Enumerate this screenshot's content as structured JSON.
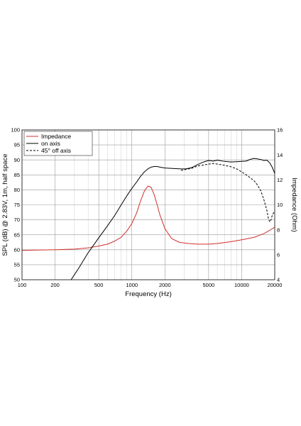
{
  "chart_data": {
    "type": "line",
    "xlabel": "Frequency (Hz)",
    "ylabel": "SPL (dB) @ 2.83V, 1m, half space",
    "y2label": "Impedance (Ohm)",
    "xscale": "log",
    "xlim": [
      100,
      20000
    ],
    "ylim": [
      50,
      100
    ],
    "y2lim": [
      4,
      16
    ],
    "grid": true,
    "legend_position": "top-left",
    "x_ticks": [
      100,
      200,
      500,
      1000,
      2000,
      5000,
      10000,
      20000
    ],
    "x_tick_labels": [
      "100",
      "200",
      "500",
      "1000",
      "2000",
      "5000",
      "10000",
      "20000"
    ],
    "y_ticks": [
      50,
      55,
      60,
      65,
      70,
      75,
      80,
      85,
      90,
      95,
      100
    ],
    "y_tick_labels": [
      "50",
      "55",
      "60",
      "65",
      "70",
      "75",
      "80",
      "85",
      "90",
      "95",
      "100"
    ],
    "y2_ticks": [
      4,
      6,
      8,
      10,
      12,
      14,
      16
    ],
    "y2_tick_labels": [
      "4",
      "6",
      "8",
      "10",
      "12",
      "14",
      "16"
    ],
    "series": [
      {
        "name": "Impedance",
        "axis": "right",
        "color": "#d0302a",
        "dash": "solid",
        "x": [
          100,
          200,
          300,
          400,
          500,
          600,
          700,
          800,
          900,
          1000,
          1100,
          1200,
          1300,
          1400,
          1500,
          1600,
          1700,
          1800,
          2000,
          2300,
          2700,
          3300,
          4000,
          5000,
          6000,
          8000,
          10000,
          13000,
          16000,
          20000
        ],
        "values": [
          6.35,
          6.4,
          6.45,
          6.55,
          6.7,
          6.85,
          7.1,
          7.4,
          7.9,
          8.5,
          9.3,
          10.3,
          11.1,
          11.5,
          11.4,
          10.8,
          10.0,
          9.2,
          8.1,
          7.3,
          7.0,
          6.9,
          6.85,
          6.85,
          6.9,
          7.05,
          7.2,
          7.4,
          7.7,
          8.2
        ]
      },
      {
        "name": "on axis",
        "axis": "left",
        "color": "#000000",
        "dash": "solid",
        "x": [
          280,
          330,
          400,
          500,
          600,
          700,
          800,
          900,
          1000,
          1100,
          1200,
          1300,
          1400,
          1500,
          1600,
          1700,
          1800,
          2000,
          2200,
          2500,
          2800,
          3100,
          3500,
          4000,
          4500,
          5000,
          5500,
          6000,
          7000,
          8000,
          9000,
          10000,
          11000,
          12000,
          13000,
          14000,
          15000,
          16000,
          17000,
          18000,
          19000,
          20000
        ],
        "values": [
          50,
          54,
          59,
          64,
          68,
          71.5,
          75,
          78,
          80.5,
          82.5,
          84.5,
          86,
          87,
          87.6,
          87.8,
          87.8,
          87.6,
          87.3,
          87.2,
          87.1,
          87.0,
          87.0,
          87.4,
          88.5,
          89.3,
          89.8,
          89.6,
          89.9,
          89.5,
          89.3,
          89.4,
          89.5,
          89.6,
          90.2,
          90.5,
          90.3,
          90.1,
          89.8,
          89.9,
          89.0,
          87.5,
          85.5
        ]
      },
      {
        "name": "45° off axis",
        "axis": "left",
        "color": "#000000",
        "dash": "dashed",
        "x": [
          2800,
          3100,
          3500,
          4000,
          4500,
          5000,
          5500,
          6000,
          7000,
          8000,
          9000,
          10000,
          11000,
          12000,
          13000,
          14000,
          15000,
          16000,
          17000,
          17500,
          18000,
          18500,
          19000,
          20000
        ],
        "values": [
          86.5,
          86.8,
          87.2,
          88.0,
          88.3,
          88.6,
          88.8,
          88.6,
          88.2,
          87.7,
          87.0,
          86.0,
          85.0,
          84.0,
          83.0,
          81.5,
          79.5,
          76.5,
          73.0,
          70.5,
          69.3,
          70.0,
          71.5,
          73.0
        ]
      }
    ]
  }
}
